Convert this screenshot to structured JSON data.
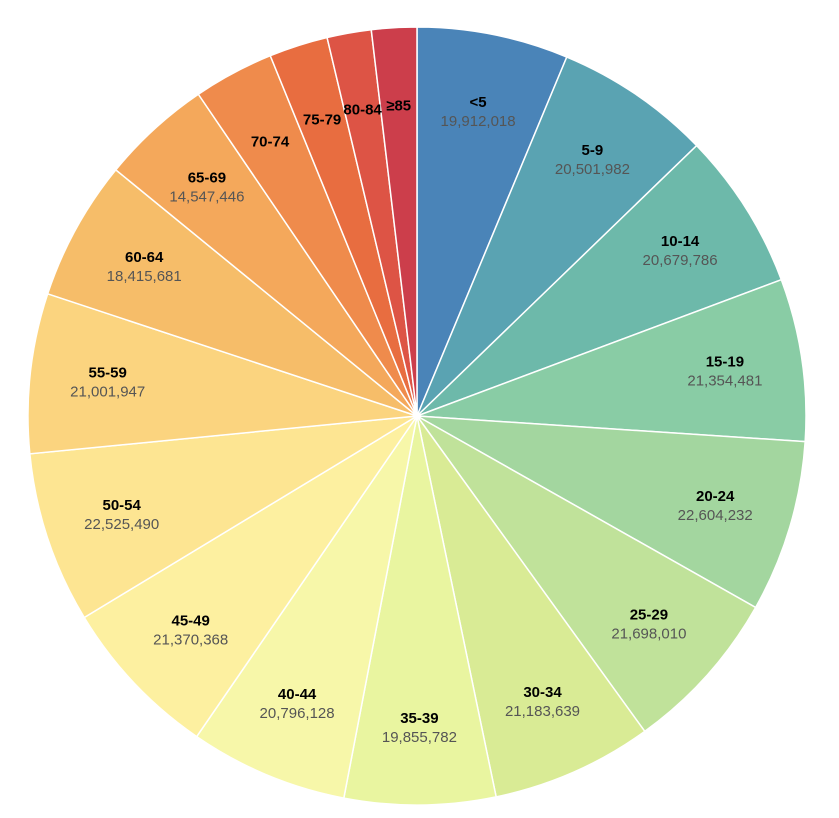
{
  "chart_data": {
    "type": "pie",
    "title": "",
    "categories": [
      "<5",
      "5-9",
      "10-14",
      "15-19",
      "20-24",
      "25-29",
      "30-34",
      "35-39",
      "40-44",
      "45-49",
      "50-54",
      "55-59",
      "60-64",
      "65-69",
      "70-74",
      "75-79",
      "80-84",
      "≥85"
    ],
    "values": [
      19912018,
      20501982,
      20679786,
      21354481,
      22604232,
      21698010,
      21183639,
      19855782,
      20796128,
      21370368,
      22525490,
      21001947,
      18415681,
      14547446,
      10587721,
      7730129,
      5811429,
      5938992
    ],
    "value_labels": [
      "19,912,018",
      "20,501,982",
      "20,679,786",
      "21,354,481",
      "22,604,232",
      "21,698,010",
      "21,183,639",
      "19,855,782",
      "20,796,128",
      "21,370,368",
      "22,525,490",
      "21,001,947",
      "18,415,681",
      "14,547,446",
      "",
      "",
      "",
      ""
    ],
    "colors": [
      "#4a84b8",
      "#5aa3b2",
      "#6db9aa",
      "#89cca5",
      "#a3d69f",
      "#c0e29a",
      "#d9eb95",
      "#e9f5a0",
      "#f7f7a9",
      "#fdf0a0",
      "#fde592",
      "#fbd47f",
      "#f6bd69",
      "#f4a85b",
      "#ef8b4c",
      "#e86d40",
      "#dd5445",
      "#cc3e4b"
    ],
    "legend": "none",
    "labels_inside": true
  }
}
